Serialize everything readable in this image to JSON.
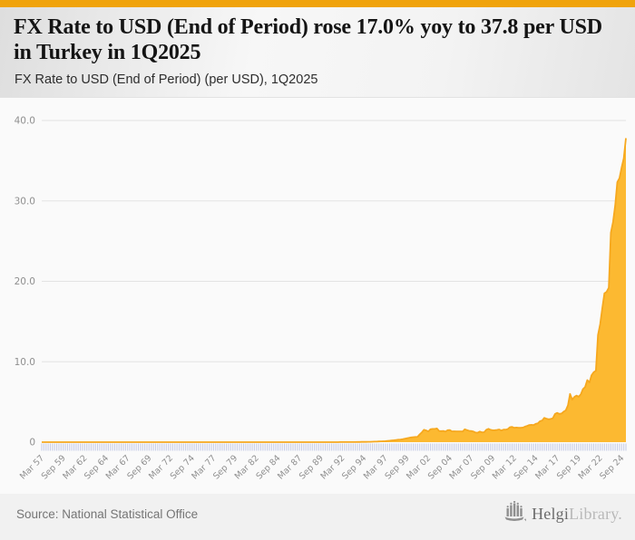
{
  "header": {
    "title": "FX Rate to USD (End of Period) rose 17.0% yoy to 37.8 per USD in Turkey in 1Q2025",
    "subtitle": "FX Rate to USD (End of Period) (per USD), 1Q2025"
  },
  "footer": {
    "source": "Source: National Statistical Office",
    "logo_text_primary": "Helgi",
    "logo_text_secondary": "Library."
  },
  "colors": {
    "accent_bar": "#f0a30c",
    "area_fill": "#fcb931",
    "area_edge": "#f6a81e",
    "grid": "#e3e3e3",
    "tick": "#c8cee7",
    "axis_text": "#8f8f8f"
  },
  "chart_data": {
    "type": "area",
    "title": "FX Rate to USD (End of Period) (per USD), 1Q2025",
    "series_name": "FX Rate to USD (End of Period), per USD, Turkey",
    "frequency": "quarterly",
    "t_start": 1957,
    "t_end": 2025,
    "x_range": [
      "Mar 1957",
      "Mar 2025"
    ],
    "ylim": [
      0,
      40
    ],
    "grid": "horizontal",
    "legend": "none",
    "y_ticks": [
      {
        "v": 0,
        "label": "0"
      },
      {
        "v": 10,
        "label": "10.0"
      },
      {
        "v": 20,
        "label": "20.0"
      },
      {
        "v": 30,
        "label": "30.0"
      },
      {
        "v": 40,
        "label": "40.0"
      }
    ],
    "x_tick_step_quarters": 10,
    "x_tick_labels": [
      "Mar 57",
      "Sep 59",
      "Mar 62",
      "Sep 64",
      "Mar 67",
      "Sep 69",
      "Mar 72",
      "Sep 74",
      "Mar 77",
      "Sep 79",
      "Mar 82",
      "Sep 84",
      "Mar 87",
      "Sep 89",
      "Mar 92",
      "Sep 94",
      "Mar 97",
      "Sep 99",
      "Mar 02",
      "Sep 04",
      "Mar 07",
      "Sep 09",
      "Mar 12",
      "Sep 14",
      "Mar 17",
      "Sep 19",
      "Mar 22",
      "Sep 24"
    ],
    "latest": {
      "period": "1Q2025",
      "value": 37.8,
      "yoy_change_pct": 17.0
    },
    "points": [
      [
        1957.0,
        3e-06
      ],
      [
        1960.0,
        9e-06
      ],
      [
        1970.0,
        1.5e-05
      ],
      [
        1980.0,
        9e-05
      ],
      [
        1985.0,
        0.0005
      ],
      [
        1988.0,
        0.0018
      ],
      [
        1990.0,
        0.0026
      ],
      [
        1991.0,
        0.004
      ],
      [
        1992.0,
        0.0065
      ],
      [
        1993.0,
        0.0095
      ],
      [
        1994.0,
        0.02
      ],
      [
        1994.25,
        0.033
      ],
      [
        1995.0,
        0.042
      ],
      [
        1996.0,
        0.072
      ],
      [
        1997.0,
        0.125
      ],
      [
        1998.0,
        0.24
      ],
      [
        1999.0,
        0.36
      ],
      [
        2000.0,
        0.59
      ],
      [
        2000.75,
        0.67
      ],
      [
        2001.0,
        0.97
      ],
      [
        2001.25,
        1.23
      ],
      [
        2001.5,
        1.54
      ],
      [
        2001.75,
        1.45
      ],
      [
        2002.0,
        1.33
      ],
      [
        2002.25,
        1.6
      ],
      [
        2002.5,
        1.65
      ],
      [
        2002.75,
        1.64
      ],
      [
        2003.0,
        1.7
      ],
      [
        2003.25,
        1.4
      ],
      [
        2003.5,
        1.38
      ],
      [
        2003.75,
        1.4
      ],
      [
        2004.0,
        1.31
      ],
      [
        2004.25,
        1.49
      ],
      [
        2004.5,
        1.5
      ],
      [
        2004.75,
        1.34
      ],
      [
        2005.0,
        1.35
      ],
      [
        2005.25,
        1.34
      ],
      [
        2005.5,
        1.34
      ],
      [
        2005.75,
        1.34
      ],
      [
        2006.0,
        1.33
      ],
      [
        2006.25,
        1.6
      ],
      [
        2006.5,
        1.5
      ],
      [
        2006.75,
        1.41
      ],
      [
        2007.0,
        1.39
      ],
      [
        2007.25,
        1.32
      ],
      [
        2007.5,
        1.2
      ],
      [
        2007.75,
        1.17
      ],
      [
        2008.0,
        1.32
      ],
      [
        2008.25,
        1.22
      ],
      [
        2008.5,
        1.23
      ],
      [
        2008.75,
        1.54
      ],
      [
        2009.0,
        1.66
      ],
      [
        2009.25,
        1.53
      ],
      [
        2009.5,
        1.48
      ],
      [
        2009.75,
        1.49
      ],
      [
        2010.0,
        1.52
      ],
      [
        2010.25,
        1.58
      ],
      [
        2010.5,
        1.44
      ],
      [
        2010.75,
        1.55
      ],
      [
        2011.0,
        1.55
      ],
      [
        2011.25,
        1.62
      ],
      [
        2011.5,
        1.86
      ],
      [
        2011.75,
        1.89
      ],
      [
        2012.0,
        1.78
      ],
      [
        2012.25,
        1.81
      ],
      [
        2012.5,
        1.79
      ],
      [
        2012.75,
        1.78
      ],
      [
        2013.0,
        1.81
      ],
      [
        2013.25,
        1.93
      ],
      [
        2013.5,
        2.02
      ],
      [
        2013.75,
        2.13
      ],
      [
        2014.0,
        2.15
      ],
      [
        2014.25,
        2.12
      ],
      [
        2014.5,
        2.28
      ],
      [
        2014.75,
        2.33
      ],
      [
        2015.0,
        2.6
      ],
      [
        2015.25,
        2.69
      ],
      [
        2015.5,
        3.02
      ],
      [
        2015.75,
        2.92
      ],
      [
        2016.0,
        2.84
      ],
      [
        2016.25,
        2.88
      ],
      [
        2016.5,
        3.0
      ],
      [
        2016.75,
        3.52
      ],
      [
        2017.0,
        3.64
      ],
      [
        2017.25,
        3.52
      ],
      [
        2017.5,
        3.56
      ],
      [
        2017.75,
        3.79
      ],
      [
        2018.0,
        3.95
      ],
      [
        2018.25,
        4.58
      ],
      [
        2018.5,
        6.0
      ],
      [
        2018.75,
        5.29
      ],
      [
        2019.0,
        5.63
      ],
      [
        2019.25,
        5.79
      ],
      [
        2019.5,
        5.65
      ],
      [
        2019.75,
        5.95
      ],
      [
        2020.0,
        6.59
      ],
      [
        2020.25,
        6.85
      ],
      [
        2020.5,
        7.72
      ],
      [
        2020.75,
        7.43
      ],
      [
        2021.0,
        8.33
      ],
      [
        2021.25,
        8.7
      ],
      [
        2021.5,
        8.88
      ],
      [
        2021.75,
        13.32
      ],
      [
        2022.0,
        14.67
      ],
      [
        2022.25,
        16.7
      ],
      [
        2022.5,
        18.51
      ],
      [
        2022.75,
        18.69
      ],
      [
        2023.0,
        19.2
      ],
      [
        2023.25,
        26.05
      ],
      [
        2023.5,
        27.38
      ],
      [
        2023.75,
        29.48
      ],
      [
        2024.0,
        32.34
      ],
      [
        2024.25,
        32.85
      ],
      [
        2024.5,
        34.18
      ],
      [
        2024.75,
        35.29
      ],
      [
        2025.0,
        37.8
      ]
    ]
  }
}
